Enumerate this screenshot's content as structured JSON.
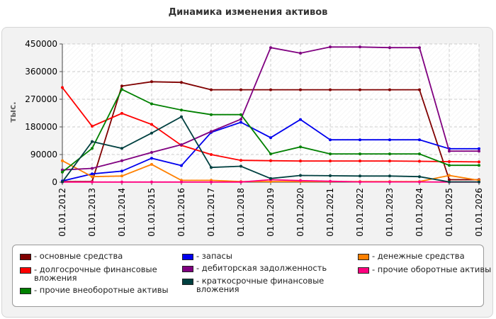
{
  "title": "Динамика изменения активов",
  "chart_data": {
    "type": "line",
    "title": "Динамика изменения активов",
    "ylabel": "тыс.",
    "xlabel": "",
    "categories": [
      "01.01.2012",
      "01.01.2013",
      "01.01.2014",
      "01.01.2015",
      "01.01.2016",
      "01.01.2017",
      "01.01.2018",
      "01.01.2019",
      "01.01.2020",
      "01.01.2021",
      "01.01.2022",
      "01.01.2023",
      "01.01.2024",
      "01.01.2025",
      "01.01.2026"
    ],
    "ylim": [
      0,
      450000
    ],
    "yticks": [
      "0",
      "90000",
      "180000",
      "270000",
      "360000",
      "450000"
    ],
    "grid": true,
    "legend_position": "bottom",
    "series": [
      {
        "name": "основные средства",
        "color": "#800000",
        "values": [
          2000,
          2000,
          313000,
          327000,
          325000,
          301000,
          301000,
          301000,
          301000,
          301000,
          301000,
          301000,
          301000,
          8000,
          8000
        ]
      },
      {
        "name": "запасы",
        "color": "#0000ee",
        "values": [
          4000,
          27000,
          36000,
          78000,
          54000,
          162000,
          195000,
          145000,
          204000,
          138000,
          138000,
          138000,
          138000,
          109000,
          109000
        ]
      },
      {
        "name": "денежные средства",
        "color": "#ff8000",
        "values": [
          70000,
          18000,
          20000,
          58000,
          6000,
          6000,
          2000,
          2000,
          2000,
          2000,
          2000,
          2000,
          2000,
          22000,
          6000
        ]
      },
      {
        "name": "долгосрочные финансовые вложения",
        "color": "#ff0000",
        "values": [
          308000,
          182000,
          224000,
          188000,
          120000,
          90000,
          71000,
          70000,
          69000,
          69000,
          69000,
          69000,
          68000,
          67000,
          66000
        ]
      },
      {
        "name": "дебиторская задолженность",
        "color": "#800080",
        "values": [
          40000,
          45000,
          70000,
          97000,
          122000,
          165000,
          205000,
          438000,
          420000,
          440000,
          440000,
          438000,
          438000,
          101000,
          101000
        ]
      },
      {
        "name": "прочие оборотные активы",
        "color": "#ff0080",
        "values": [
          500,
          500,
          500,
          500,
          500,
          500,
          500,
          8000,
          5000,
          3000,
          1000,
          1000,
          1000,
          500,
          500
        ]
      },
      {
        "name": "прочие внеоборотные активы",
        "color": "#008000",
        "values": [
          33000,
          110000,
          302000,
          255000,
          235000,
          220000,
          220000,
          92000,
          115000,
          92000,
          92000,
          92000,
          92000,
          55000,
          55000
        ]
      },
      {
        "name": "краткосрочные финансовые вложения",
        "color": "#004040",
        "values": [
          1000,
          132000,
          110000,
          160000,
          213000,
          48000,
          52000,
          12000,
          22000,
          21000,
          20000,
          20000,
          18000,
          1000,
          1000
        ]
      }
    ]
  },
  "legend": {
    "columns": [
      [
        "основные средства",
        "долгосрочные финансовые вложения",
        "прочие внеоборотные активы"
      ],
      [
        "запасы",
        "дебиторская задолженность",
        "краткосрочные финансовые вложения"
      ],
      [
        "денежные средства",
        "прочие оборотные активы"
      ]
    ]
  }
}
